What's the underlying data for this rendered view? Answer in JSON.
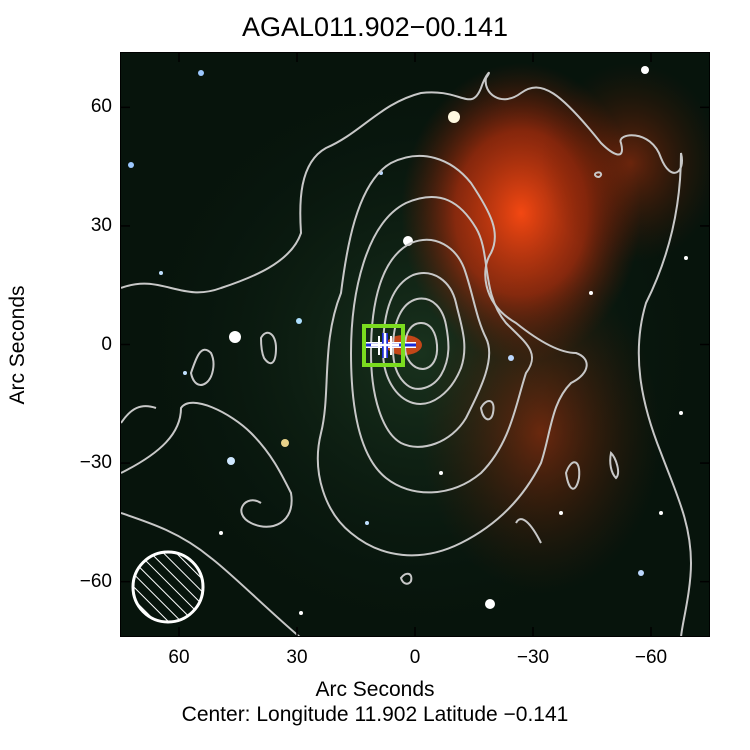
{
  "title": "AGAL011.902−00.141",
  "y_axis": {
    "label": "Arc Seconds",
    "ticks": [
      {
        "label": "60",
        "value": 60
      },
      {
        "label": "30",
        "value": 30
      },
      {
        "label": "0",
        "value": 0
      },
      {
        "label": "−30",
        "value": -30
      },
      {
        "label": "−60",
        "value": -60
      }
    ],
    "range": [
      -74,
      74
    ]
  },
  "x_axis": {
    "label": "Arc Seconds",
    "ticks": [
      {
        "label": "60",
        "value": 60
      },
      {
        "label": "30",
        "value": 30
      },
      {
        "label": "0",
        "value": 0
      },
      {
        "label": "−30",
        "value": -30
      },
      {
        "label": "−60",
        "value": -60
      }
    ],
    "range": [
      75,
      -75
    ]
  },
  "center_text": "Center:  Longitude 11.902 Latitude −0.141",
  "colors": {
    "background": "#07140c",
    "contour": "#c8c8c8",
    "marker_box": "#7bdc1f",
    "marker_cross": "#ffffff",
    "marker_line": "#1b2bd6",
    "red_emission": "#e03a10",
    "beam": "#ffffff"
  },
  "beam_icon": "hatched-beam-circle"
}
